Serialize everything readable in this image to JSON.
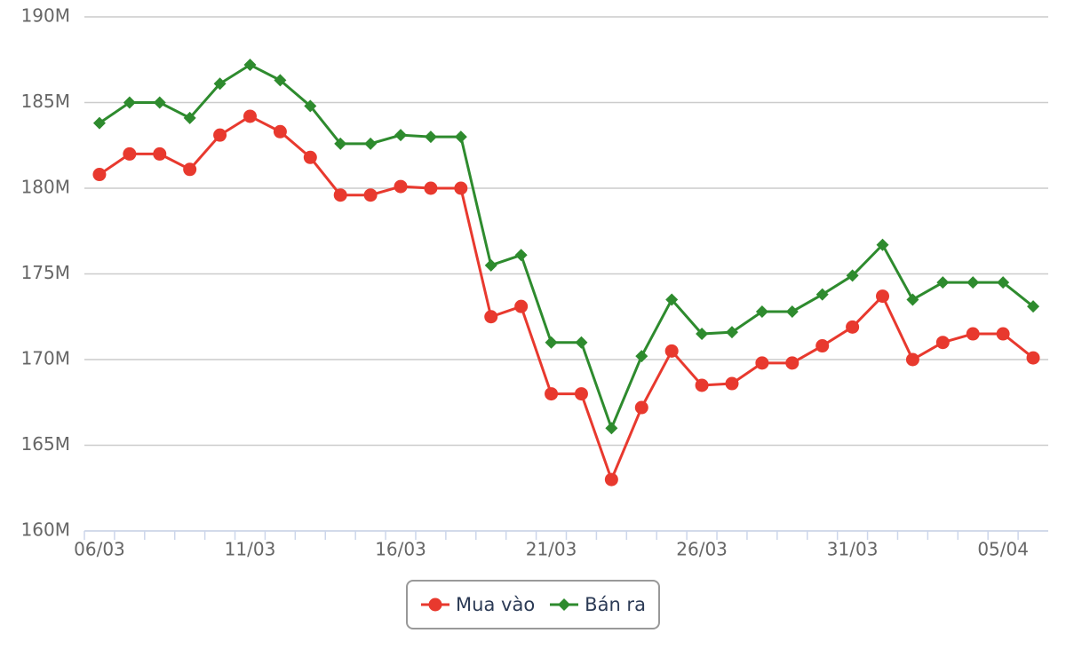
{
  "chart_data": {
    "type": "line",
    "categories": [
      "06/03",
      null,
      null,
      null,
      null,
      "11/03",
      null,
      null,
      null,
      null,
      "16/03",
      null,
      null,
      null,
      null,
      "21/03",
      null,
      null,
      null,
      null,
      "26/03",
      null,
      null,
      null,
      null,
      "31/03",
      null,
      null,
      null,
      null,
      "05/04",
      null
    ],
    "series": [
      {
        "name": "Mua vào",
        "color": "#e8392e",
        "marker": "circle",
        "values": [
          180800000,
          182000000,
          182000000,
          181100000,
          183100000,
          184200000,
          183300000,
          181800000,
          179600000,
          179600000,
          180100000,
          180000000,
          180000000,
          172500000,
          173100000,
          168000000,
          168000000,
          163000000,
          167200000,
          170500000,
          168500000,
          168600000,
          169800000,
          169800000,
          170800000,
          171900000,
          173700000,
          170000000,
          171000000,
          171500000,
          171500000,
          170100000
        ]
      },
      {
        "name": "Bán ra",
        "color": "#2e8b2e",
        "marker": "diamond",
        "values": [
          183800000,
          185000000,
          185000000,
          184100000,
          186100000,
          187200000,
          186300000,
          184800000,
          182600000,
          182600000,
          183100000,
          183000000,
          183000000,
          175500000,
          176100000,
          171000000,
          171000000,
          166000000,
          170200000,
          173500000,
          171500000,
          171600000,
          172800000,
          172800000,
          173800000,
          174900000,
          176700000,
          173500000,
          174500000,
          174500000,
          174500000,
          173100000
        ]
      }
    ],
    "ylim": [
      160000000,
      190000000
    ],
    "yticks": [
      {
        "value": 160000000,
        "label": "160M"
      },
      {
        "value": 165000000,
        "label": "165M"
      },
      {
        "value": 170000000,
        "label": "170M"
      },
      {
        "value": 175000000,
        "label": "175M"
      },
      {
        "value": 180000000,
        "label": "180M"
      },
      {
        "value": 185000000,
        "label": "185M"
      },
      {
        "value": 190000000,
        "label": "190M"
      }
    ],
    "grid": true,
    "legend": "bottom"
  }
}
